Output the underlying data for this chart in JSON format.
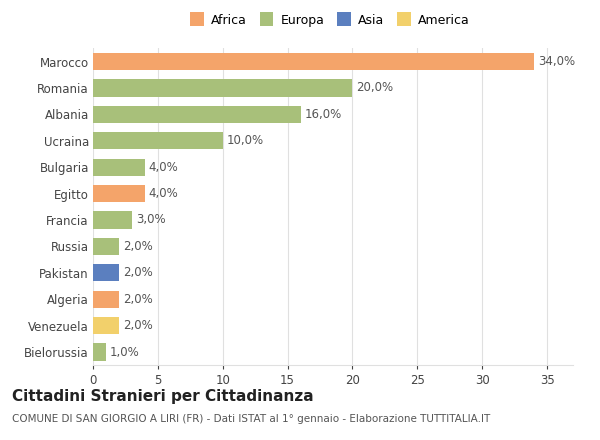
{
  "countries": [
    "Marocco",
    "Romania",
    "Albania",
    "Ucraina",
    "Bulgaria",
    "Egitto",
    "Francia",
    "Russia",
    "Pakistan",
    "Algeria",
    "Venezuela",
    "Bielorussia"
  ],
  "values": [
    34.0,
    20.0,
    16.0,
    10.0,
    4.0,
    4.0,
    3.0,
    2.0,
    2.0,
    2.0,
    2.0,
    1.0
  ],
  "continents": [
    "Africa",
    "Europa",
    "Europa",
    "Europa",
    "Europa",
    "Africa",
    "Europa",
    "Europa",
    "Asia",
    "Africa",
    "America",
    "Europa"
  ],
  "continent_colors": {
    "Africa": "#F4A46A",
    "Europa": "#A8C07A",
    "Asia": "#5B7FBF",
    "America": "#F2D06B"
  },
  "legend_order": [
    "Africa",
    "Europa",
    "Asia",
    "America"
  ],
  "title": "Cittadini Stranieri per Cittadinanza",
  "subtitle": "COMUNE DI SAN GIORGIO A LIRI (FR) - Dati ISTAT al 1° gennaio - Elaborazione TUTTITALIA.IT",
  "xlim": [
    0,
    37
  ],
  "xticks": [
    0,
    5,
    10,
    15,
    20,
    25,
    30,
    35
  ],
  "background_color": "#ffffff",
  "grid_color": "#e0e0e0",
  "bar_height": 0.65,
  "label_fontsize": 8.5,
  "tick_fontsize": 8.5,
  "title_fontsize": 11,
  "subtitle_fontsize": 7.5
}
